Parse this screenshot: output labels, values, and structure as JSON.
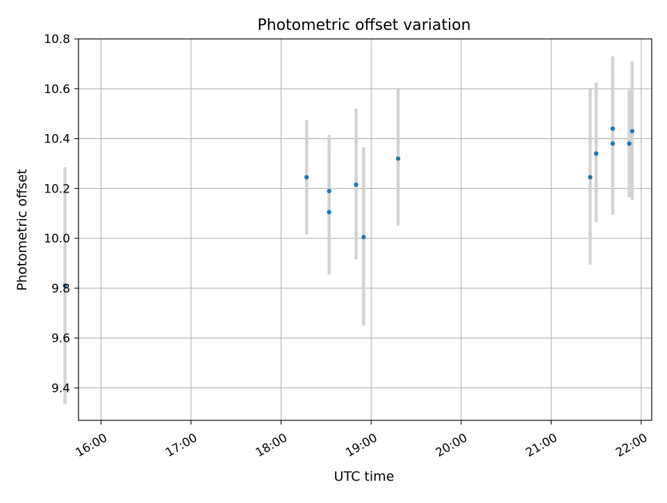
{
  "chart_data": {
    "type": "scatter",
    "title": "Photometric offset variation",
    "xlabel": "UTC time",
    "ylabel": "Photometric offset",
    "x_axis": {
      "kind": "time",
      "range": [
        "15:45",
        "22:07"
      ],
      "ticks": [
        "16:00",
        "17:00",
        "18:00",
        "19:00",
        "20:00",
        "21:00",
        "22:00"
      ]
    },
    "y_axis": {
      "range": [
        9.27,
        10.8
      ],
      "ticks": [
        9.4,
        9.6,
        9.8,
        10.0,
        10.2,
        10.4,
        10.6,
        10.8
      ],
      "tick_labels": [
        "9.4",
        "9.6",
        "9.8",
        "10.0",
        "10.2",
        "10.4",
        "10.6",
        "10.8"
      ]
    },
    "grid": true,
    "colors": {
      "marker": "#1f77b4",
      "errorbar": "#d3d3d3",
      "grid": "#b0b0b0"
    },
    "points": [
      {
        "time": "15:36",
        "y": 9.81,
        "ylow": 9.335,
        "yhigh": 10.285
      },
      {
        "time": "18:17",
        "y": 10.245,
        "ylow": 10.015,
        "yhigh": 10.475
      },
      {
        "time": "18:32",
        "y": 10.19,
        "ylow": 10.03,
        "yhigh": 10.36
      },
      {
        "time": "18:32",
        "y": 10.105,
        "ylow": 9.855,
        "yhigh": 10.415
      },
      {
        "time": "18:50",
        "y": 10.215,
        "ylow": 9.915,
        "yhigh": 10.52
      },
      {
        "time": "18:55",
        "y": 10.005,
        "ylow": 9.65,
        "yhigh": 10.365
      },
      {
        "time": "19:18",
        "y": 10.32,
        "ylow": 10.05,
        "yhigh": 10.6
      },
      {
        "time": "21:26",
        "y": 10.245,
        "ylow": 9.895,
        "yhigh": 10.6
      },
      {
        "time": "21:30",
        "y": 10.34,
        "ylow": 10.065,
        "yhigh": 10.625
      },
      {
        "time": "21:41",
        "y": 10.38,
        "ylow": 10.095,
        "yhigh": 10.665
      },
      {
        "time": "21:41",
        "y": 10.44,
        "ylow": 10.155,
        "yhigh": 10.73
      },
      {
        "time": "21:52",
        "y": 10.38,
        "ylow": 10.165,
        "yhigh": 10.595
      },
      {
        "time": "21:54",
        "y": 10.43,
        "ylow": 10.155,
        "yhigh": 10.71
      }
    ]
  }
}
